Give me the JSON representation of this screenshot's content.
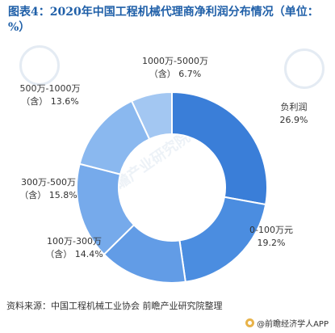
{
  "title": "图表4：2020年中国工程机械代理商净利润分布情况（单位：%）",
  "source": "资料来源：中国工程机械工业协会 前瞻产业研究院整理",
  "brand": "@前瞻经济学人APP",
  "watermark": "前瞻产业研究院",
  "colors": {
    "slice1": "#3a7ed8",
    "slice2": "#4b8de0",
    "slice3": "#629ce6",
    "slice4": "#76aaeb",
    "slice5": "#8ab8ef",
    "slice6": "#a3c7f2"
  },
  "chart_data": {
    "type": "pie",
    "title": "2020年中国工程机械代理商净利润分布情况",
    "unit": "%",
    "categories": [
      "负利润",
      "0-100万元",
      "100万-300万（含）",
      "300万-500万（含）",
      "500万-1000万（含）",
      "1000万-5000万（含）"
    ],
    "values": [
      26.9,
      19.2,
      14.4,
      15.8,
      13.6,
      6.7
    ],
    "value_labels": [
      "26.9%",
      "19.2%",
      "14.4%",
      "15.8%",
      "13.6%",
      "6.7%"
    ]
  }
}
